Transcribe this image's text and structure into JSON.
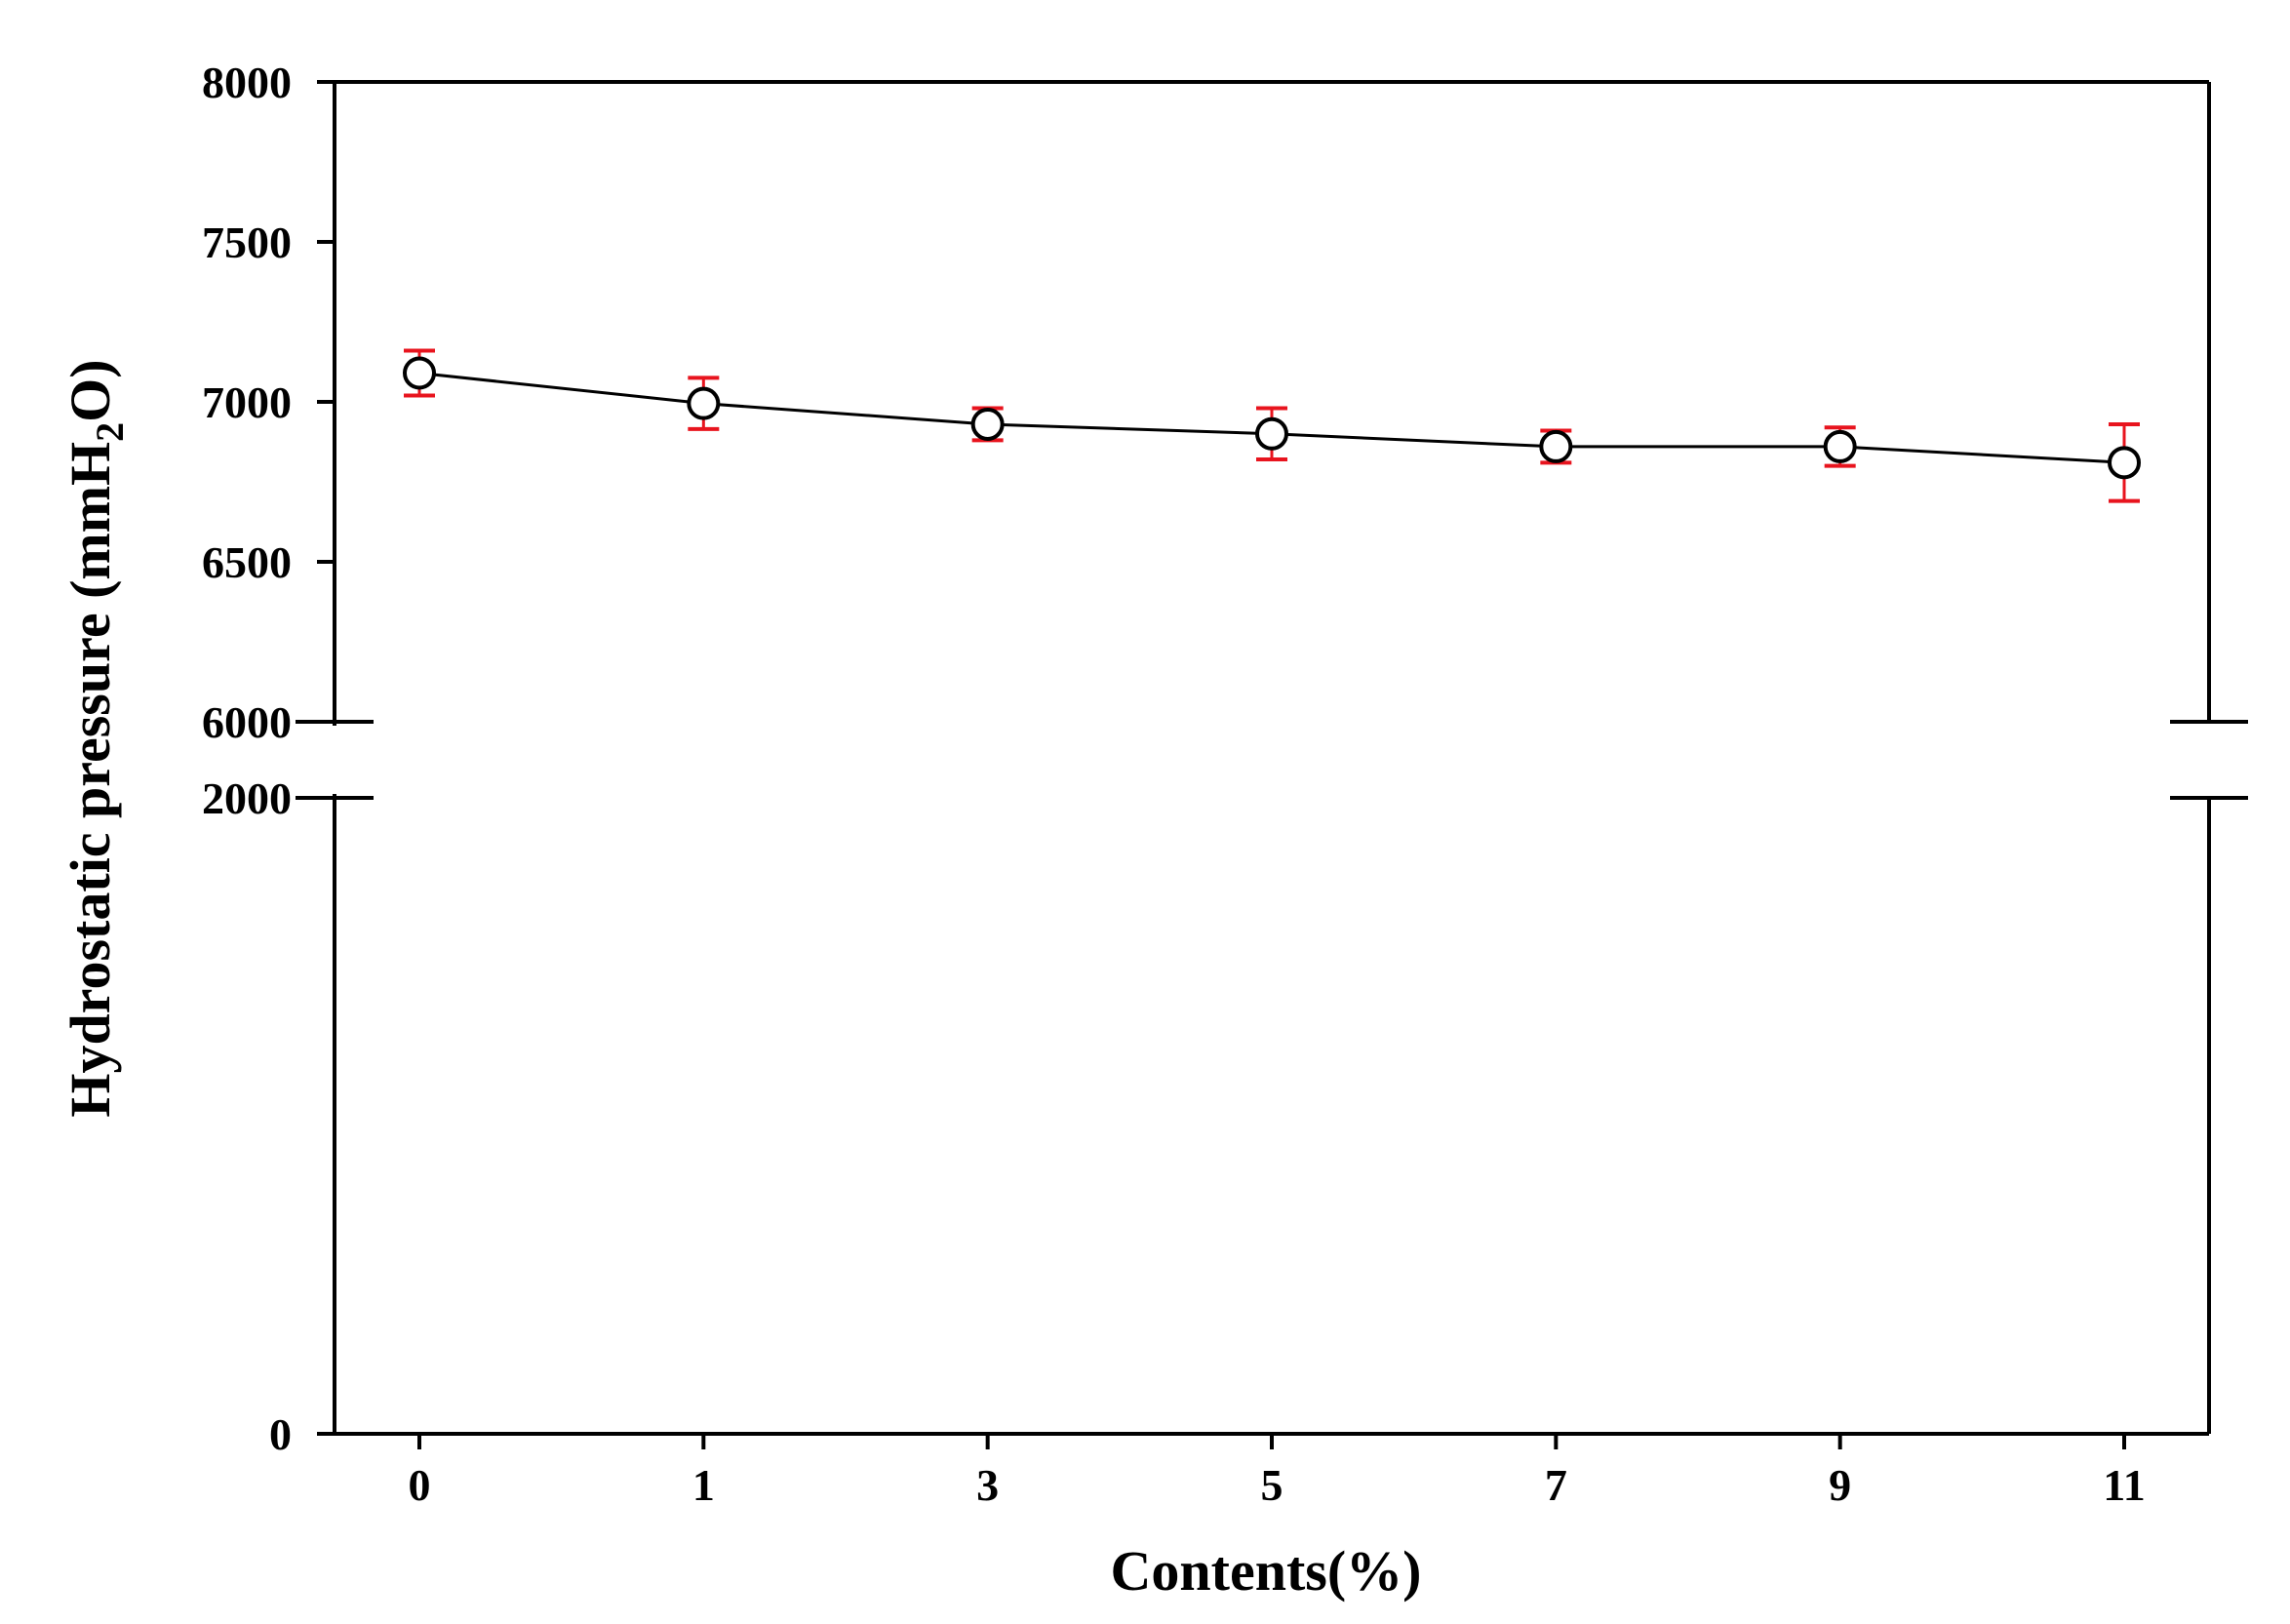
{
  "chart_data": {
    "type": "line",
    "title": "",
    "xlabel": "Contents(%)",
    "ylabel_main": "Hydrostatic pressure (mmH",
    "ylabel_sub": "2",
    "ylabel_end": "O)",
    "categories": [
      "0",
      "1",
      "3",
      "5",
      "7",
      "9",
      "11"
    ],
    "series": [
      {
        "values": [
          7090,
          6995,
          6930,
          6900,
          6860,
          6860,
          6810
        ],
        "errors": [
          70,
          80,
          50,
          80,
          50,
          60,
          120
        ]
      }
    ],
    "y_broken_axis": {
      "lower_range": [
        0,
        2000
      ],
      "upper_range": [
        6000,
        8000
      ]
    },
    "y_ticks_upper": [
      "8000",
      "7500",
      "7000",
      "6500",
      "6000"
    ],
    "y_ticks_lower": [
      "2000",
      "0"
    ],
    "colors": {
      "line": "#000000",
      "marker_fill": "#ffffff",
      "error_bar": "#e8141e"
    },
    "grid": false,
    "legend": "none"
  }
}
